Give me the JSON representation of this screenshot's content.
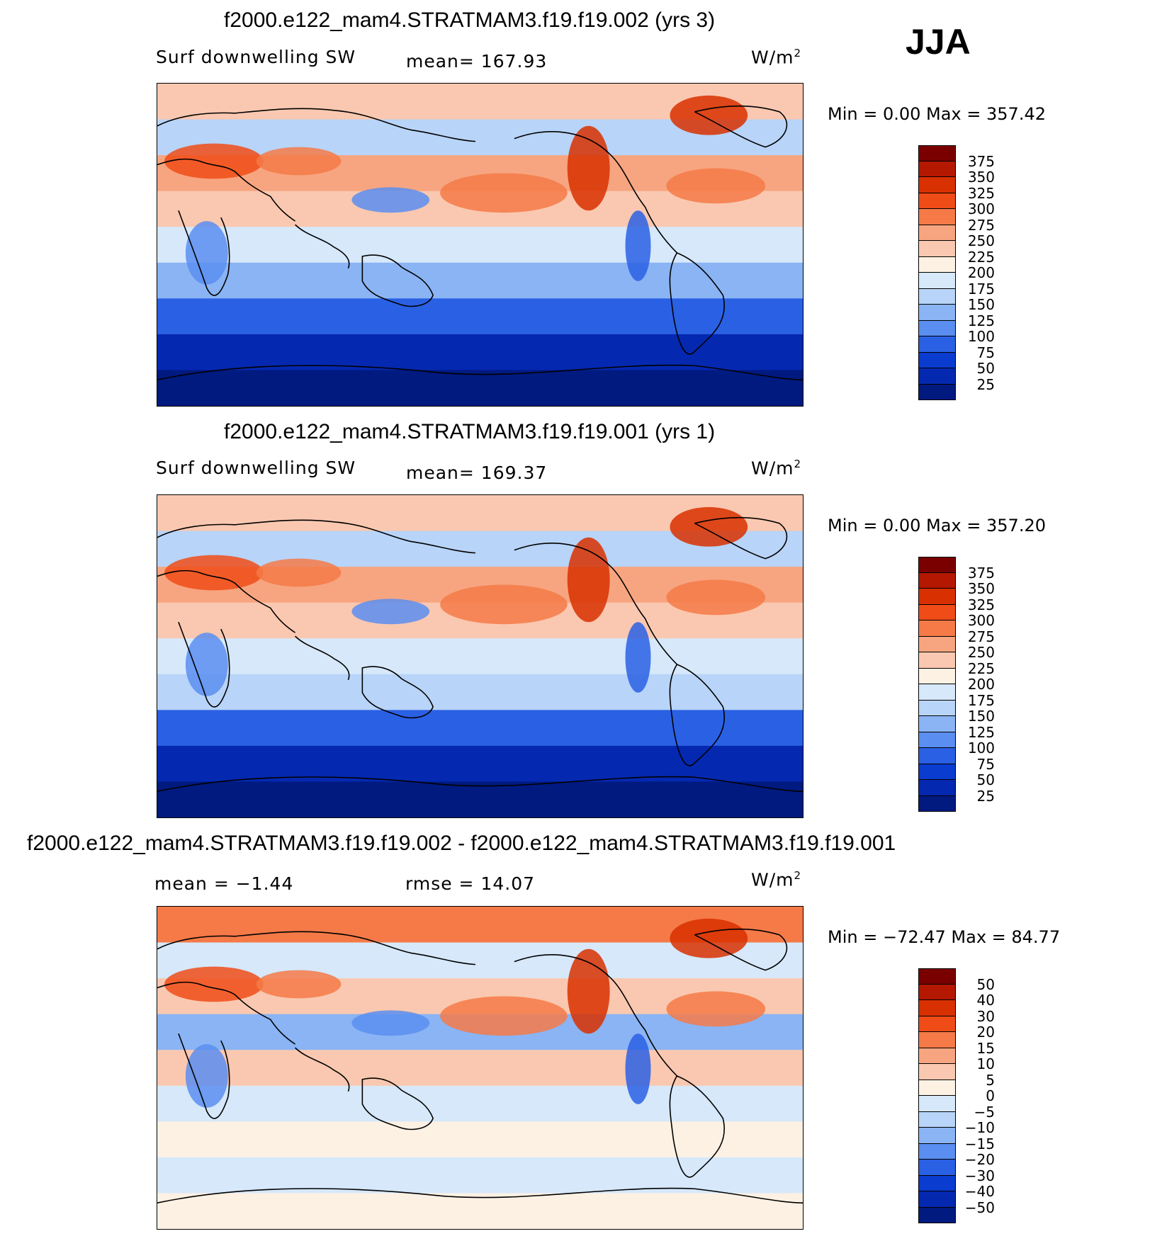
{
  "season": "JJA",
  "panels": [
    {
      "title": "f2000.e122_mam4.STRATMAM3.f19.f19.002 (yrs 3)",
      "variable": "Surf downwelling SW",
      "stat_text": "mean= 167.93",
      "units": "W/m",
      "units_exp": "2",
      "minmax": "Min =    0.00 Max = 357.42",
      "colorbar_labels": [
        "375",
        "350",
        "325",
        "300",
        "275",
        "250",
        "225",
        "200",
        "175",
        "150",
        "125",
        "100",
        "75",
        "50",
        "25"
      ],
      "colorbar_colors": [
        "#7a0000",
        "#b41800",
        "#d83000",
        "#f04c18",
        "#f57a48",
        "#f7a580",
        "#fac8b0",
        "#fdf1e4",
        "#d6e8fa",
        "#b8d4f8",
        "#8ab4f4",
        "#5a8ef0",
        "#2a60e4",
        "#0a3cd0",
        "#0428b0",
        "#001a80"
      ],
      "map": {
        "band_colors": [
          "#fac8b0",
          "#b8d4f8",
          "#f7a580",
          "#fac8b0",
          "#d6e8fa",
          "#8ab4f4",
          "#2a60e4",
          "#0428b0",
          "#001a80"
        ]
      }
    },
    {
      "title": "f2000.e122_mam4.STRATMAM3.f19.f19.001 (yrs 1)",
      "variable": "Surf downwelling SW",
      "stat_text": "mean= 169.37",
      "units": "W/m",
      "units_exp": "2",
      "minmax": "Min =    0.00 Max = 357.20",
      "colorbar_labels": [
        "375",
        "350",
        "325",
        "300",
        "275",
        "250",
        "225",
        "200",
        "175",
        "150",
        "125",
        "100",
        "75",
        "50",
        "25"
      ],
      "colorbar_colors": [
        "#7a0000",
        "#b41800",
        "#d83000",
        "#f04c18",
        "#f57a48",
        "#f7a580",
        "#fac8b0",
        "#fdf1e4",
        "#d6e8fa",
        "#b8d4f8",
        "#8ab4f4",
        "#5a8ef0",
        "#2a60e4",
        "#0a3cd0",
        "#0428b0",
        "#001a80"
      ],
      "map": {
        "band_colors": [
          "#fac8b0",
          "#b8d4f8",
          "#f7a580",
          "#fac8b0",
          "#d6e8fa",
          "#b8d4f8",
          "#2a60e4",
          "#0428b0",
          "#001a80"
        ]
      }
    },
    {
      "title": "f2000.e122_mam4.STRATMAM3.f19.f19.002 - f2000.e122_mam4.STRATMAM3.f19.f19.001",
      "stat_text": "mean =   −1.44",
      "stat_text2": "rmse =   14.07",
      "units": "W/m",
      "units_exp": "2",
      "minmax": "Min = −72.47 Max =  84.77",
      "colorbar_labels": [
        "50",
        "40",
        "30",
        "20",
        "15",
        "10",
        "5",
        "0",
        "−5",
        "−10",
        "−15",
        "−20",
        "−30",
        "−40",
        "−50"
      ],
      "colorbar_colors": [
        "#7a0000",
        "#b41800",
        "#d83000",
        "#f04c18",
        "#f57a48",
        "#f7a580",
        "#fac8b0",
        "#fdf1e4",
        "#d6e8fa",
        "#b8d4f8",
        "#8ab4f4",
        "#5a8ef0",
        "#2a60e4",
        "#0a3cd0",
        "#0428b0",
        "#001a80"
      ],
      "map": {
        "band_colors": [
          "#f57a48",
          "#d6e8fa",
          "#fac8b0",
          "#8ab4f4",
          "#fac8b0",
          "#d6e8fa",
          "#fdf1e4",
          "#d6e8fa",
          "#fdf1e4"
        ]
      }
    }
  ]
}
